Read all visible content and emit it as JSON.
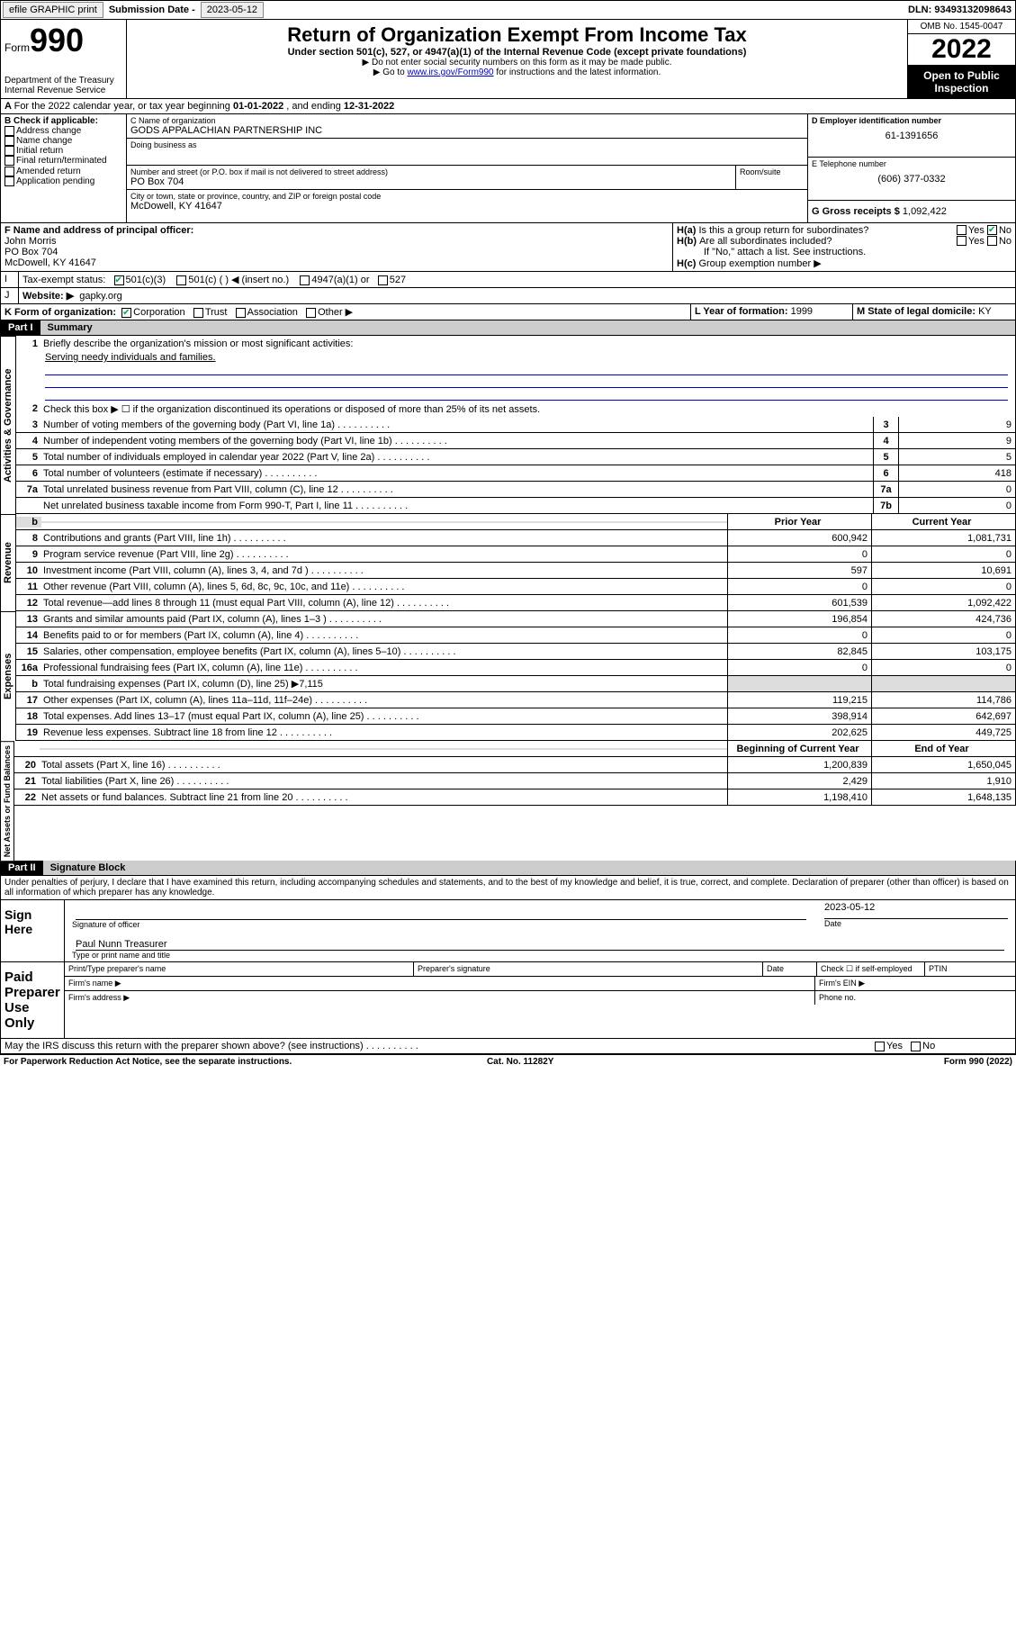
{
  "topbar": {
    "efile": "efile GRAPHIC print",
    "submission_label": "Submission Date - ",
    "submission_date": "2023-05-12",
    "dln_label": "DLN: ",
    "dln": "93493132098643"
  },
  "header": {
    "form_word": "Form",
    "form_num": "990",
    "dept": "Department of the Treasury",
    "irs": "Internal Revenue Service",
    "title": "Return of Organization Exempt From Income Tax",
    "sub": "Under section 501(c), 527, or 4947(a)(1) of the Internal Revenue Code (except private foundations)",
    "note1": "▶ Do not enter social security numbers on this form as it may be made public.",
    "note2_pre": "▶ Go to ",
    "note2_link": "www.irs.gov/Form990",
    "note2_post": " for instructions and the latest information.",
    "omb": "OMB No. 1545-0047",
    "year": "2022",
    "inspection": "Open to Public Inspection"
  },
  "periodA": {
    "text_pre": "For the 2022 calendar year, or tax year beginning ",
    "begin": "01-01-2022",
    "mid": " , and ending ",
    "end": "12-31-2022"
  },
  "boxB": {
    "label": "B Check if applicable:",
    "items": [
      "Address change",
      "Name change",
      "Initial return",
      "Final return/terminated",
      "Amended return",
      "Application pending"
    ]
  },
  "boxC": {
    "name_lbl": "C Name of organization",
    "name": "GODS APPALACHIAN PARTNERSHIP INC",
    "dba_lbl": "Doing business as",
    "dba": "",
    "addr_lbl": "Number and street (or P.O. box if mail is not delivered to street address)",
    "room_lbl": "Room/suite",
    "addr": "PO Box 704",
    "city_lbl": "City or town, state or province, country, and ZIP or foreign postal code",
    "city": "McDowell, KY  41647"
  },
  "boxD": {
    "lbl": "D Employer identification number",
    "val": "61-1391656"
  },
  "boxE": {
    "lbl": "E Telephone number",
    "val": "(606) 377-0332"
  },
  "boxG": {
    "lbl": "G Gross receipts $",
    "val": "1,092,422"
  },
  "boxF": {
    "lbl": "F Name and address of principal officer:",
    "name": "John Morris",
    "addr1": "PO Box 704",
    "addr2": "McDowell, KY  41647"
  },
  "boxH": {
    "a": "Is this a group return for subordinates?",
    "b": "Are all subordinates included?",
    "note": "If \"No,\" attach a list. See instructions.",
    "c": "Group exemption number ▶"
  },
  "boxI": {
    "lbl": "Tax-exempt status:",
    "opts": [
      "501(c)(3)",
      "501(c) (  ) ◀ (insert no.)",
      "4947(a)(1) or",
      "527"
    ]
  },
  "boxJ": {
    "lbl": "Website: ▶",
    "val": "gapky.org"
  },
  "boxK": {
    "lbl": "K Form of organization:",
    "opts": [
      "Corporation",
      "Trust",
      "Association",
      "Other ▶"
    ]
  },
  "boxL": {
    "lbl": "L Year of formation:",
    "val": "1999"
  },
  "boxM": {
    "lbl": "M State of legal domicile:",
    "val": "KY"
  },
  "part1": {
    "hdr": "Part I",
    "title": "Summary",
    "q1": "Briefly describe the organization's mission or most significant activities:",
    "q1a": "Serving needy individuals and families.",
    "q2": "Check this box ▶ ☐  if the organization discontinued its operations or disposed of more than 25% of its net assets.",
    "sideA": "Activities & Governance",
    "sideR": "Revenue",
    "sideE": "Expenses",
    "sideN": "Net Assets or Fund Balances",
    "col_prior": "Prior Year",
    "col_curr": "Current Year",
    "col_begin": "Beginning of Current Year",
    "col_end": "End of Year",
    "lines_gov": [
      {
        "n": "3",
        "d": "Number of voting members of the governing body (Part VI, line 1a)",
        "b": "3",
        "v": "9"
      },
      {
        "n": "4",
        "d": "Number of independent voting members of the governing body (Part VI, line 1b)",
        "b": "4",
        "v": "9"
      },
      {
        "n": "5",
        "d": "Total number of individuals employed in calendar year 2022 (Part V, line 2a)",
        "b": "5",
        "v": "5"
      },
      {
        "n": "6",
        "d": "Total number of volunteers (estimate if necessary)",
        "b": "6",
        "v": "418"
      },
      {
        "n": "7a",
        "d": "Total unrelated business revenue from Part VIII, column (C), line 12",
        "b": "7a",
        "v": "0"
      },
      {
        "n": "",
        "d": "Net unrelated business taxable income from Form 990-T, Part I, line 11",
        "b": "7b",
        "v": "0"
      }
    ],
    "lines_rev": [
      {
        "n": "8",
        "d": "Contributions and grants (Part VIII, line 1h)",
        "p": "600,942",
        "c": "1,081,731"
      },
      {
        "n": "9",
        "d": "Program service revenue (Part VIII, line 2g)",
        "p": "0",
        "c": "0"
      },
      {
        "n": "10",
        "d": "Investment income (Part VIII, column (A), lines 3, 4, and 7d )",
        "p": "597",
        "c": "10,691"
      },
      {
        "n": "11",
        "d": "Other revenue (Part VIII, column (A), lines 5, 6d, 8c, 9c, 10c, and 11e)",
        "p": "0",
        "c": "0"
      },
      {
        "n": "12",
        "d": "Total revenue—add lines 8 through 11 (must equal Part VIII, column (A), line 12)",
        "p": "601,539",
        "c": "1,092,422"
      }
    ],
    "lines_exp": [
      {
        "n": "13",
        "d": "Grants and similar amounts paid (Part IX, column (A), lines 1–3 )",
        "p": "196,854",
        "c": "424,736"
      },
      {
        "n": "14",
        "d": "Benefits paid to or for members (Part IX, column (A), line 4)",
        "p": "0",
        "c": "0"
      },
      {
        "n": "15",
        "d": "Salaries, other compensation, employee benefits (Part IX, column (A), lines 5–10)",
        "p": "82,845",
        "c": "103,175"
      },
      {
        "n": "16a",
        "d": "Professional fundraising fees (Part IX, column (A), line 11e)",
        "p": "0",
        "c": "0"
      },
      {
        "n": "b",
        "d": "Total fundraising expenses (Part IX, column (D), line 25) ▶7,115",
        "p": "",
        "c": "",
        "shade": true
      },
      {
        "n": "17",
        "d": "Other expenses (Part IX, column (A), lines 11a–11d, 11f–24e)",
        "p": "119,215",
        "c": "114,786"
      },
      {
        "n": "18",
        "d": "Total expenses. Add lines 13–17 (must equal Part IX, column (A), line 25)",
        "p": "398,914",
        "c": "642,697"
      },
      {
        "n": "19",
        "d": "Revenue less expenses. Subtract line 18 from line 12",
        "p": "202,625",
        "c": "449,725"
      }
    ],
    "lines_net": [
      {
        "n": "20",
        "d": "Total assets (Part X, line 16)",
        "p": "1,200,839",
        "c": "1,650,045"
      },
      {
        "n": "21",
        "d": "Total liabilities (Part X, line 26)",
        "p": "2,429",
        "c": "1,910"
      },
      {
        "n": "22",
        "d": "Net assets or fund balances. Subtract line 21 from line 20",
        "p": "1,198,410",
        "c": "1,648,135"
      }
    ]
  },
  "part2": {
    "hdr": "Part II",
    "title": "Signature Block",
    "decl": "Under penalties of perjury, I declare that I have examined this return, including accompanying schedules and statements, and to the best of my knowledge and belief, it is true, correct, and complete. Declaration of preparer (other than officer) is based on all information of which preparer has any knowledge.",
    "sign_here": "Sign Here",
    "sig_officer": "Signature of officer",
    "sig_date": "Date",
    "sig_date_val": "2023-05-12",
    "sig_name": "Paul Nunn Treasurer",
    "sig_name_lbl": "Type or print name and title",
    "paid": "Paid Preparer Use Only",
    "pp_name": "Print/Type preparer's name",
    "pp_sig": "Preparer's signature",
    "pp_date": "Date",
    "pp_check": "Check ☐ if self-employed",
    "pp_ptin": "PTIN",
    "pp_firm": "Firm's name  ▶",
    "pp_ein": "Firm's EIN ▶",
    "pp_addr": "Firm's address ▶",
    "pp_phone": "Phone no.",
    "discuss": "May the IRS discuss this return with the preparer shown above? (see instructions)"
  },
  "footer": {
    "pra": "For Paperwork Reduction Act Notice, see the separate instructions.",
    "cat": "Cat. No. 11282Y",
    "form": "Form 990 (2022)"
  },
  "yesno": {
    "yes": "Yes",
    "no": "No"
  }
}
